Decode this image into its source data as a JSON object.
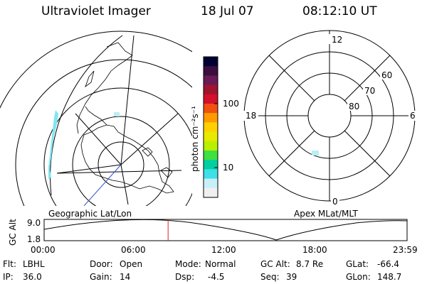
{
  "header": {
    "instrument": "Ultraviolet Imager",
    "date": "18 Jul 07",
    "time": "08:12:10 UT"
  },
  "left_map": {
    "label": "Geographic Lat/Lon"
  },
  "colorbar": {
    "unit_label": "photon cm⁻²s⁻¹",
    "tick_100": "100",
    "tick_10": "10",
    "colors": [
      "#000033",
      "#3a0e3e",
      "#6a1a55",
      "#a0142d",
      "#d4102a",
      "#f05010",
      "#ff9a00",
      "#ffd000",
      "#e8e800",
      "#b8f000",
      "#40e040",
      "#00d0a0",
      "#40e0e8",
      "#c8f0f8",
      "#f0f0f0"
    ]
  },
  "right_map": {
    "label": "Apex MLat/MLT",
    "mlt_12": "12",
    "mlt_18": "18",
    "mlt_6": "6",
    "mlt_0": "0",
    "lat_60": "60",
    "lat_70": "70",
    "lat_80": "80"
  },
  "altitude_plot": {
    "ylabel": "GC Alt",
    "ytick_top": "9.0",
    "ytick_bottom": "1.8",
    "xticks": [
      "00:00",
      "06:00",
      "12:00",
      "18:00",
      "23:59"
    ],
    "current_time_hours": 8.2
  },
  "info": {
    "filter_label": "Flt:",
    "filter_value": "LBHL",
    "ip_label": "IP:",
    "ip_value": "36.0",
    "door_label": "Door:",
    "door_value": "Open",
    "gain_label": "Gain:",
    "gain_value": "14",
    "mode_label": "Mode:",
    "mode_value": "Normal",
    "dsp_label": "Dsp:",
    "dsp_value": "-4.5",
    "gcalt_label": "GC Alt:",
    "gcalt_value": "8.7 Re",
    "seq_label": "Seq:",
    "seq_value": "39",
    "glat_label": "GLat:",
    "glat_value": "-66.4",
    "glon_label": "GLon:",
    "glon_value": "148.7"
  }
}
